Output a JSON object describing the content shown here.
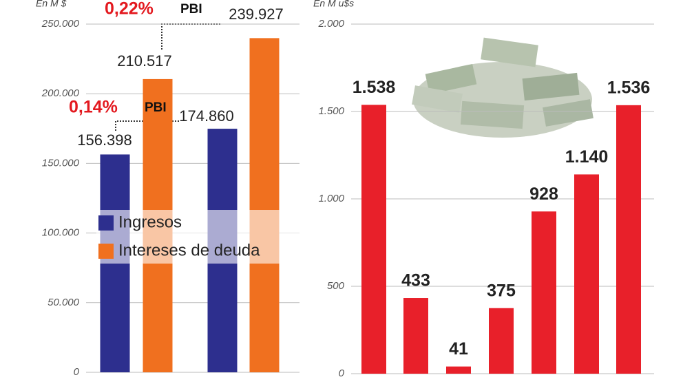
{
  "chart_data": [
    {
      "type": "bar",
      "y_label": "En M $",
      "categories": [
        null,
        null
      ],
      "series": [
        {
          "name": "Ingresos",
          "color": "#2d2f8e",
          "values": [
            156398,
            174860
          ],
          "value_labels": [
            "156.398",
            "174.860"
          ]
        },
        {
          "name": "Intereses de deuda",
          "color": "#f0701f",
          "values": [
            210517,
            239927
          ],
          "value_labels": [
            "210.517",
            "239.927"
          ]
        }
      ],
      "annotations": [
        {
          "pct": "0,14%",
          "label": "PBI"
        },
        {
          "pct": "0,22%",
          "label": "PBI"
        }
      ],
      "ylim": [
        0,
        250000
      ],
      "yticks": [
        0,
        {
          "value": 50000,
          "label": "50.000"
        },
        {
          "value": 100000,
          "label": "100.000"
        },
        {
          "value": 150000,
          "label": "150.000"
        },
        {
          "value": 200000,
          "label": "200.000"
        },
        {
          "value": 250000,
          "label": "250.000"
        }
      ],
      "grid": true
    },
    {
      "type": "bar",
      "y_label": "En M u$s",
      "categories": [
        null,
        null,
        null,
        null,
        null,
        null,
        null
      ],
      "values": [
        1538,
        433,
        41,
        375,
        928,
        1140,
        1536
      ],
      "value_labels": [
        "1.538",
        "433",
        "41",
        "375",
        "928",
        "1.140",
        "1.536"
      ],
      "color": "#e8202a",
      "ylim": [
        0,
        2000
      ],
      "yticks": [
        0,
        500,
        {
          "value": 1000,
          "label": "1.000"
        },
        {
          "value": 1500,
          "label": "1.500"
        },
        {
          "value": 2000,
          "label": "2.000"
        }
      ],
      "grid": true
    }
  ]
}
